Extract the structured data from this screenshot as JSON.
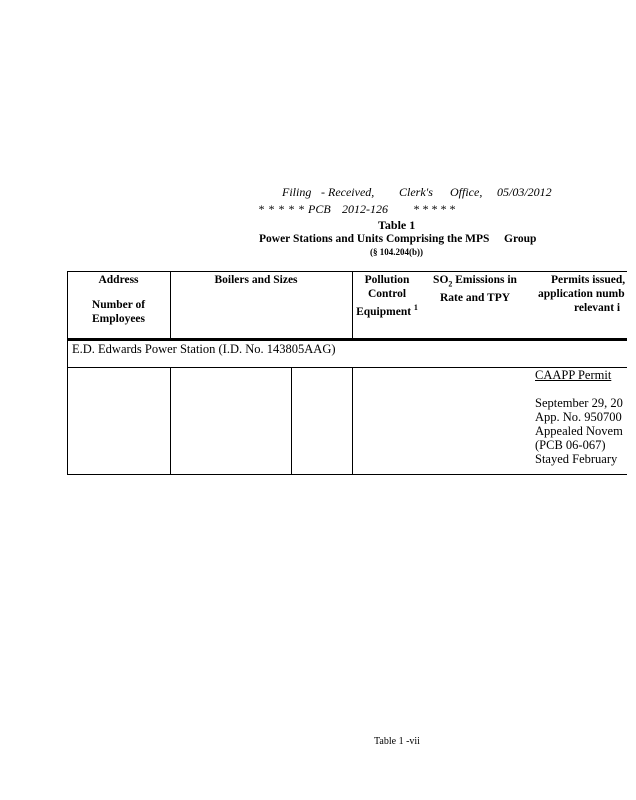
{
  "stamp": {
    "line1": [
      "Filing",
      "- Received,",
      "Clerk's",
      "Office,",
      "05/03/2012"
    ],
    "line2": [
      "* * * * * PCB",
      "2012-126",
      "* * * * *"
    ]
  },
  "title": "Table 1",
  "subtitle": [
    "Power Stations and Units Comprising the MPS",
    "Group"
  ],
  "section": "(§ 104.204(b))",
  "table": {
    "headers": {
      "address": "Address",
      "employees": [
        "Number of",
        "Employees"
      ],
      "boilers": "Boilers and Sizes",
      "pollution": [
        "Pollution",
        "Control",
        "Equipment"
      ],
      "pollution_footnote": "1",
      "so2": [
        "SO",
        "2",
        " Emissions in",
        "Rate and TPY"
      ],
      "permits": [
        "Permits issued,",
        "application numb",
        "relevant i"
      ]
    },
    "station": "E.D. Edwards Power Station (I.D. No. 143805AAG)",
    "permit_cell": {
      "heading": "CAAPP Permit",
      "lines": [
        "September 29, 20",
        "App. No. 950700",
        "Appealed Novem",
        "(PCB 06-067)",
        "Stayed February"
      ]
    }
  },
  "footer": "Table 1 -vii"
}
